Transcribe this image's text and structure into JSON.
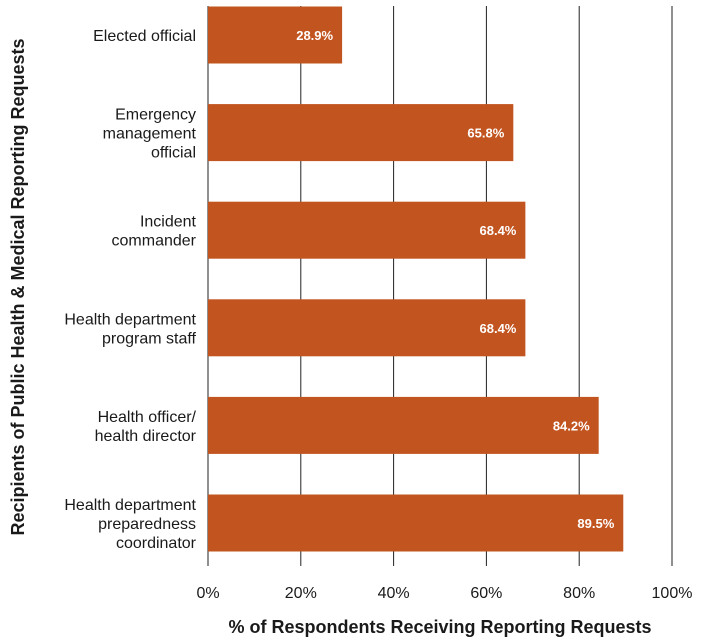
{
  "chart_data": {
    "type": "bar",
    "orientation": "horizontal",
    "categories": [
      "Elected official",
      "Emergency management official",
      "Incident commander",
      "Health department program staff",
      "Health officer/ health director",
      "Health department preparedness coordinator"
    ],
    "category_lines": [
      [
        "Elected official"
      ],
      [
        "Emergency",
        "management",
        "official"
      ],
      [
        "Incident",
        "commander"
      ],
      [
        "Health department",
        "program staff"
      ],
      [
        "Health officer/",
        "health director"
      ],
      [
        "Health department",
        "preparedness",
        "coordinator"
      ]
    ],
    "values": [
      28.9,
      65.8,
      68.4,
      68.4,
      84.2,
      89.5
    ],
    "value_labels": [
      "28.9%",
      "65.8%",
      "68.4%",
      "68.4%",
      "84.2%",
      "89.5%"
    ],
    "xlabel": "% of Respondents Receiving Reporting Requests",
    "ylabel": "Recipients of Public Health & Medical Reporting Requests",
    "xlim": [
      0,
      100
    ],
    "xticks": [
      0,
      20,
      40,
      60,
      80,
      100
    ],
    "xtick_labels": [
      "0%",
      "20%",
      "40%",
      "60%",
      "80%",
      "100%"
    ],
    "grid": "vertical",
    "bar_color": "#c2541f",
    "legend": "none"
  }
}
